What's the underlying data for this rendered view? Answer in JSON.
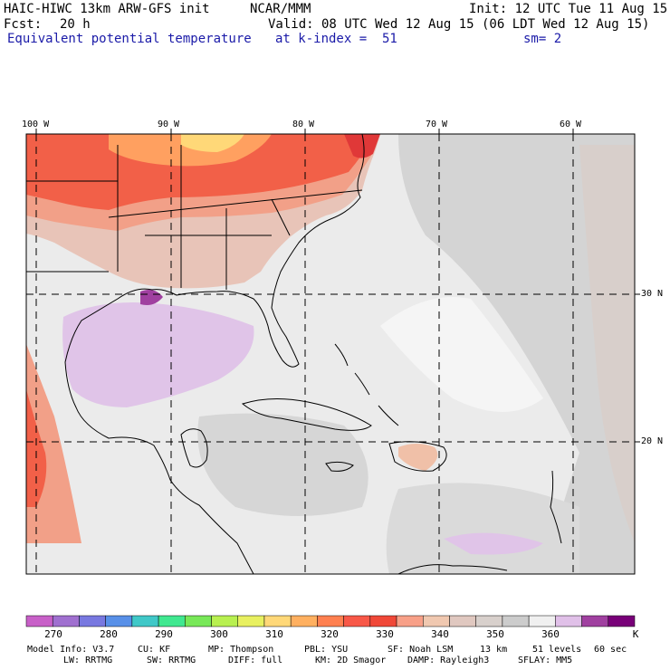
{
  "header": {
    "title": "HAIC-HIWC 13km ARW-GFS init",
    "org": "NCAR/MMM",
    "init": "Init: 12 UTC Tue 11 Aug 15",
    "fcst_label": "Fcst:",
    "fcst_value": "20 h",
    "valid": "Valid: 08 UTC Wed 12 Aug 15 (06 LDT Wed 12 Aug 15)",
    "field": "Equivalent potential temperature",
    "level": "at k-index =  51",
    "smoothing": "sm= 2"
  },
  "map": {
    "lon_labels": [
      "100 W",
      "90 W",
      "80 W",
      "70 W",
      "60 W"
    ],
    "lat_labels": [
      "30 N",
      "20 N"
    ]
  },
  "colorbar": {
    "unit": "K",
    "tick_labels": [
      "270",
      "280",
      "290",
      "300",
      "310",
      "320",
      "330",
      "340",
      "350",
      "360"
    ],
    "colors": [
      "#c860c8",
      "#a070d0",
      "#7878e0",
      "#5890e8",
      "#40c8c8",
      "#40e890",
      "#78e858",
      "#b8f050",
      "#e8f060",
      "#ffd878",
      "#ffb060",
      "#ff8050",
      "#f85848",
      "#f04838",
      "#f8a088",
      "#f0c8b0",
      "#e0c8c0",
      "#d8d0cc",
      "#cccccc",
      "#f0f0f0",
      "#e0c0e8",
      "#a040a0",
      "#780078"
    ]
  },
  "footer": {
    "model_info": "Model Info: V3.7",
    "cu": "CU: KF",
    "mp": "MP: Thompson",
    "pbl": "PBL: YSU",
    "sf": "SF: Noah LSM",
    "res": "13 km",
    "levels": "51 levels",
    "dt": "60 sec",
    "lw": "LW: RRTMG",
    "sw": "SW: RRTMG",
    "diff": "DIFF: full",
    "km": "KM: 2D Smagor",
    "damp": "DAMP: Rayleigh3",
    "sflay": "SFLAY: MM5"
  }
}
